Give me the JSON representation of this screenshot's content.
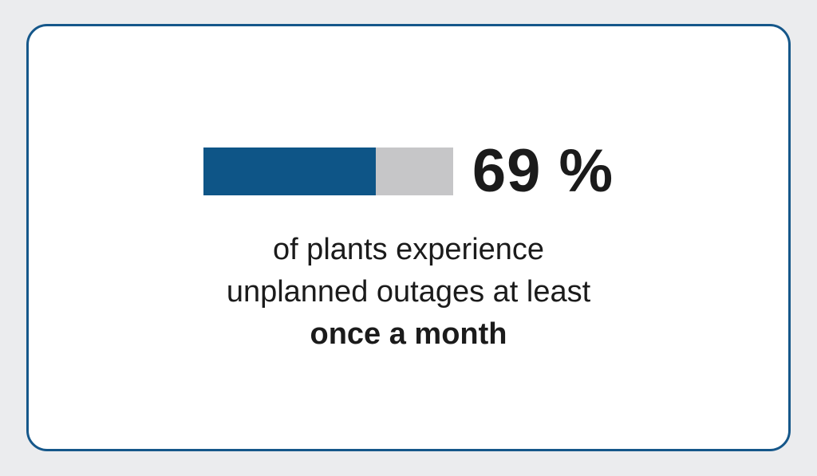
{
  "card": {
    "stat": {
      "value_label": "69 %",
      "percent": 69
    },
    "description": {
      "line1": "of plants experience",
      "line2": "unplanned outages at least",
      "line3": "once a month"
    }
  },
  "chart_data": {
    "type": "bar",
    "categories": [
      "plants experiencing unplanned outages at least once a month"
    ],
    "values": [
      69
    ],
    "title": "69 % of plants experience unplanned outages at least once a month",
    "xlabel": "",
    "ylabel": "",
    "xlim": [
      0,
      100
    ],
    "unit": "%",
    "legend": "none",
    "grid": false
  },
  "colors": {
    "accent": "#15578a",
    "bar_fill": "#0e5587",
    "track": "#c6c6c8",
    "card_bg": "#ffffff",
    "page_bg": "#ebecee",
    "text": "#1b1b1b"
  }
}
